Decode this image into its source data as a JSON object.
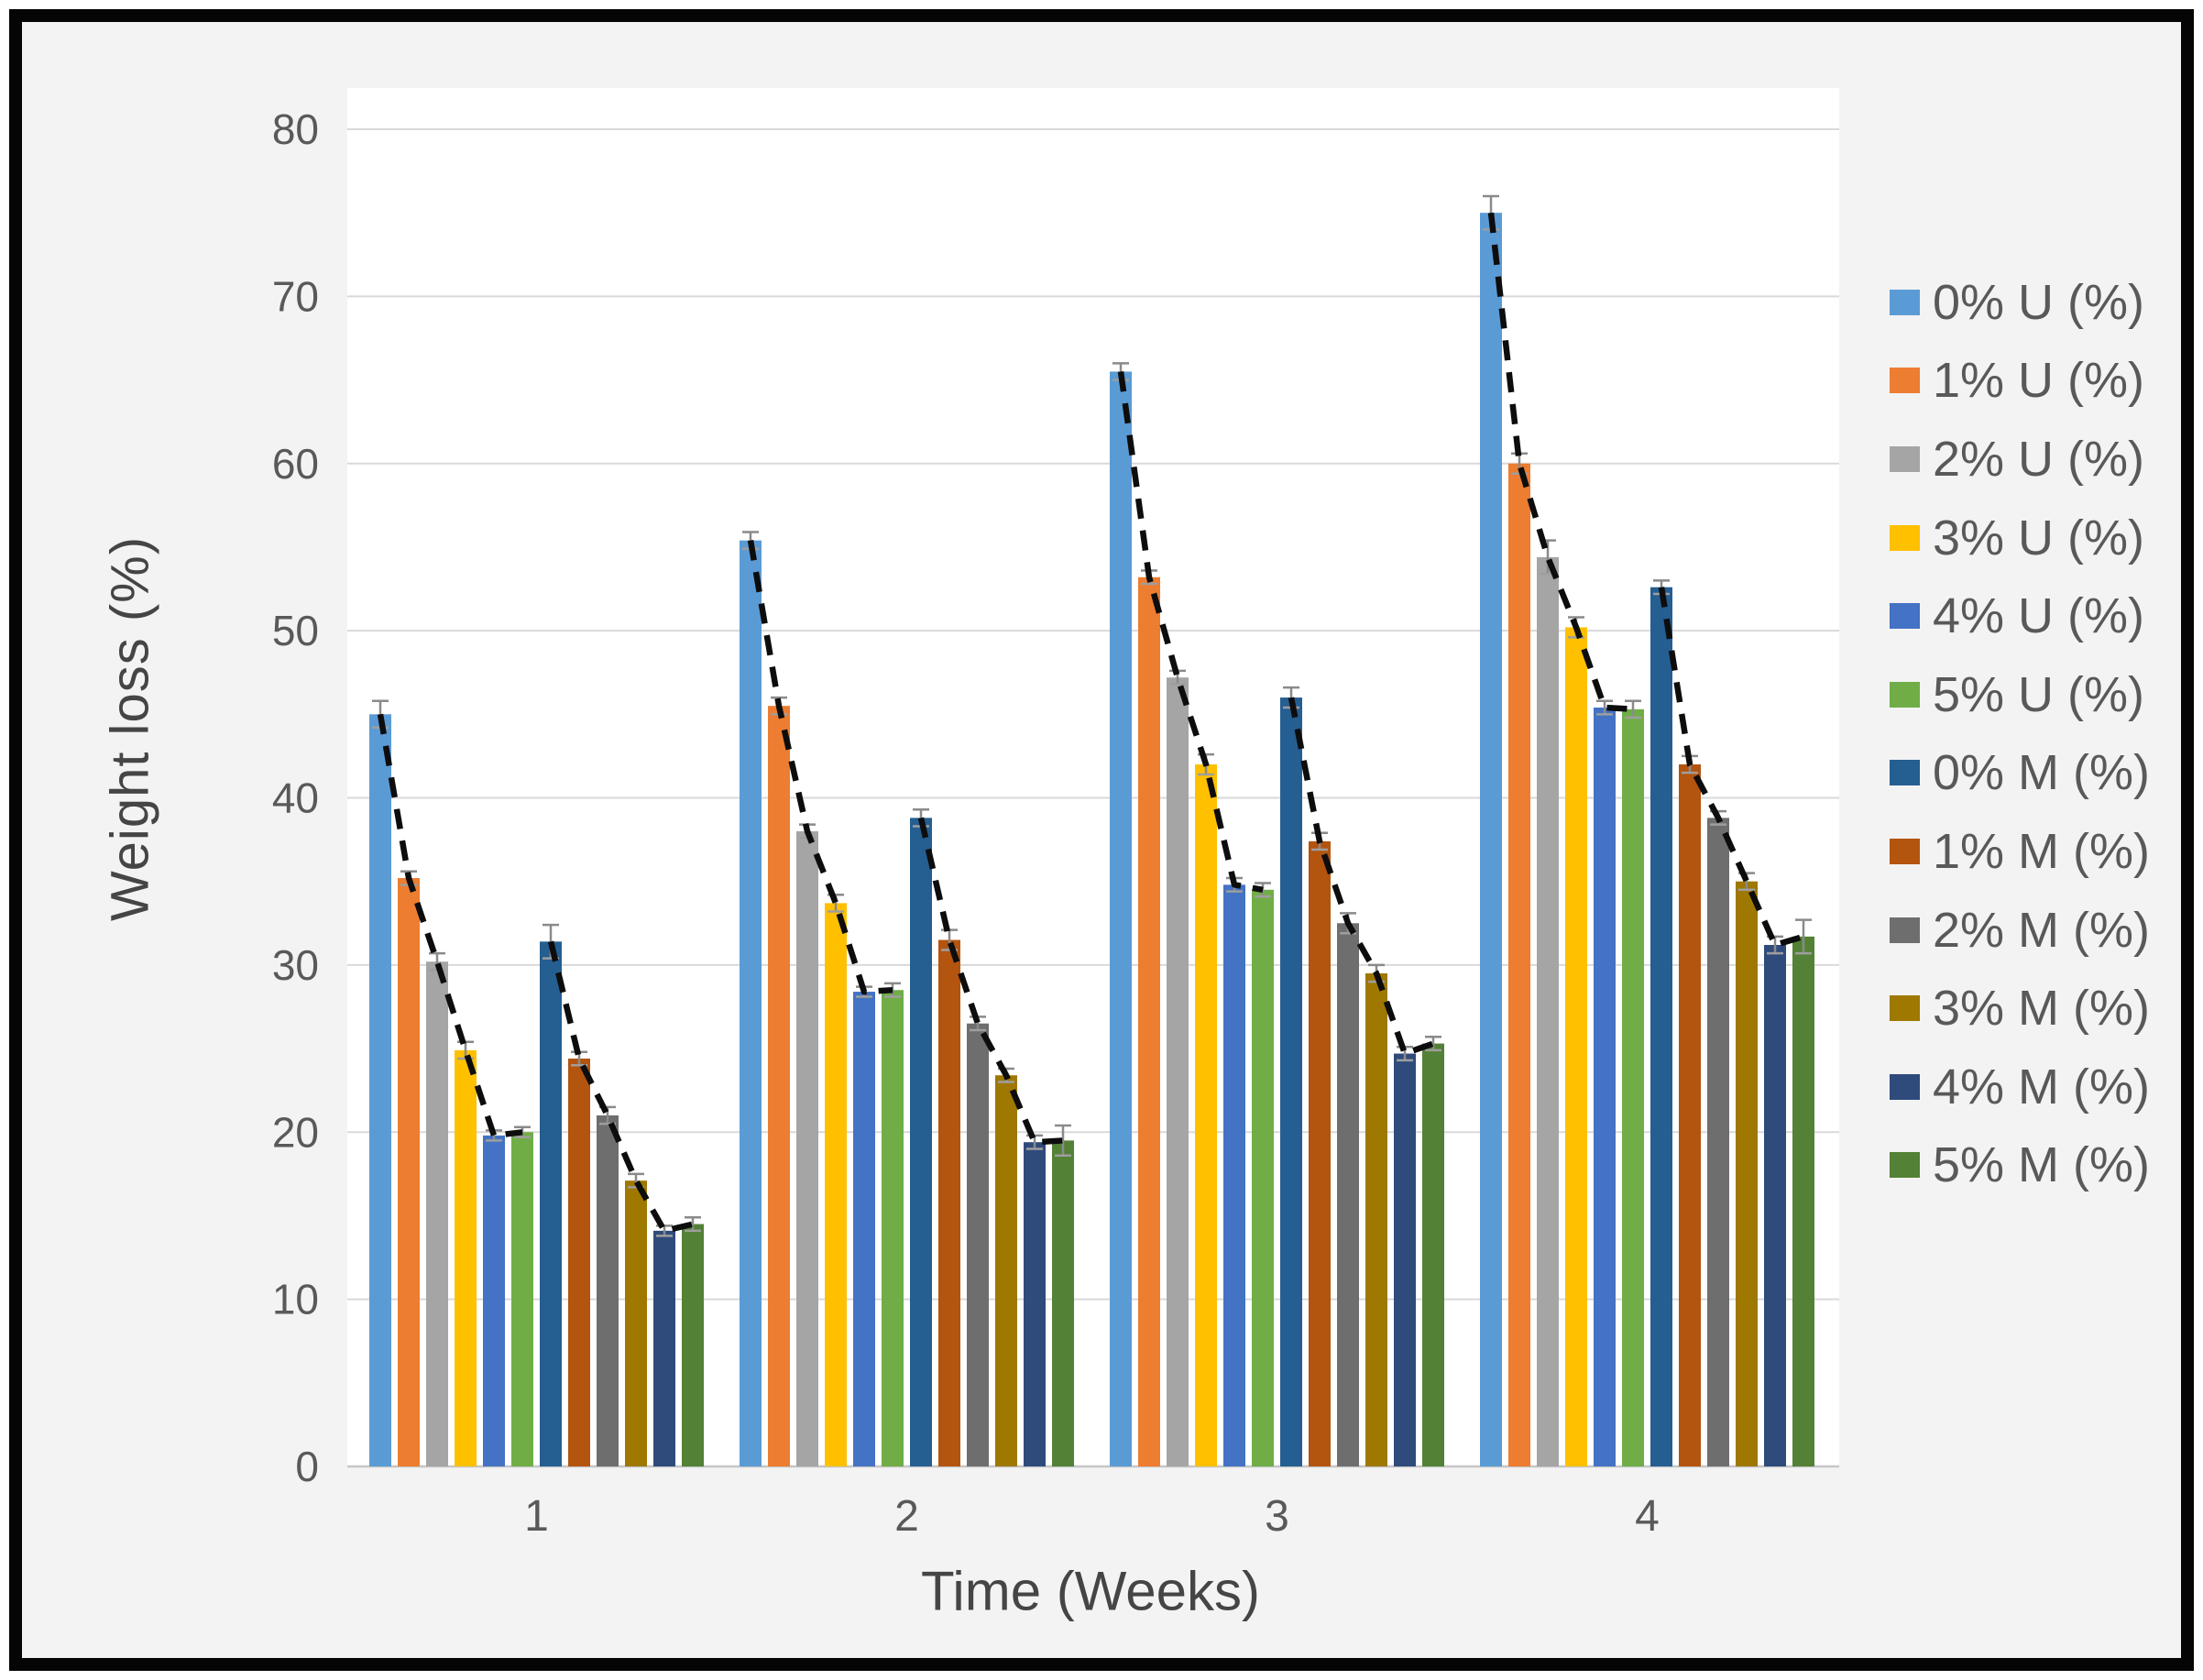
{
  "figure": {
    "background": "#F3F3F3",
    "border_color": "#050505"
  },
  "chart_data": {
    "type": "bar",
    "title": "",
    "xlabel": "Time (Weeks)",
    "ylabel": "Weight loss (%)",
    "categories": [
      "1",
      "2",
      "3",
      "4"
    ],
    "ylim": [
      0,
      80
    ],
    "yticks": [
      0,
      10,
      20,
      30,
      40,
      50,
      60,
      70,
      80
    ],
    "grid": true,
    "legend_position": "right",
    "error_bars": true,
    "trend_lines": {
      "style": "dashed",
      "color": "#0D0D0D",
      "note": "two dashed lines per week group: one tracing U-series bar tops, one tracing M-series bar tops"
    },
    "series": [
      {
        "name": "0% U (%)",
        "color": "#5B9BD5",
        "values": [
          45.0,
          55.4,
          65.5,
          75.0
        ],
        "errors": [
          0.8,
          0.5,
          0.5,
          1.0
        ]
      },
      {
        "name": "1% U (%)",
        "color": "#ED7D31",
        "values": [
          35.2,
          45.5,
          53.2,
          60.0
        ],
        "errors": [
          0.4,
          0.5,
          0.4,
          0.6
        ]
      },
      {
        "name": "2% U (%)",
        "color": "#A5A5A5",
        "values": [
          30.2,
          38.0,
          47.2,
          54.4
        ],
        "errors": [
          0.5,
          0.4,
          0.4,
          1.0
        ]
      },
      {
        "name": "3% U (%)",
        "color": "#FFC000",
        "values": [
          24.9,
          33.7,
          42.0,
          50.2
        ],
        "errors": [
          0.5,
          0.5,
          0.6,
          0.6
        ]
      },
      {
        "name": "4% U (%)",
        "color": "#4472C4",
        "values": [
          19.8,
          28.4,
          34.8,
          45.4
        ],
        "errors": [
          0.3,
          0.3,
          0.4,
          0.4
        ]
      },
      {
        "name": "5% U (%)",
        "color": "#70AD47",
        "values": [
          20.0,
          28.5,
          34.5,
          45.3
        ],
        "errors": [
          0.3,
          0.4,
          0.4,
          0.5
        ]
      },
      {
        "name": "0% M (%)",
        "color": "#255E91",
        "values": [
          31.4,
          38.8,
          46.0,
          52.6
        ],
        "errors": [
          1.0,
          0.5,
          0.6,
          0.4
        ]
      },
      {
        "name": "1% M (%)",
        "color": "#B3540F",
        "values": [
          24.4,
          31.5,
          37.4,
          42.0
        ],
        "errors": [
          0.4,
          0.6,
          0.5,
          0.5
        ]
      },
      {
        "name": "2% M (%)",
        "color": "#6E6E6E",
        "values": [
          21.0,
          26.5,
          32.5,
          38.8
        ],
        "errors": [
          0.5,
          0.4,
          0.6,
          0.4
        ]
      },
      {
        "name": "3% M (%)",
        "color": "#9E7800",
        "values": [
          17.1,
          23.4,
          29.5,
          35.0
        ],
        "errors": [
          0.4,
          0.4,
          0.5,
          0.5
        ]
      },
      {
        "name": "4% M (%)",
        "color": "#2F4B7C",
        "values": [
          14.1,
          19.4,
          24.7,
          31.2
        ],
        "errors": [
          0.3,
          0.4,
          0.4,
          0.5
        ]
      },
      {
        "name": "5% M (%)",
        "color": "#538135",
        "values": [
          14.5,
          19.5,
          25.3,
          31.7
        ],
        "errors": [
          0.4,
          0.9,
          0.4,
          1.0
        ]
      }
    ]
  }
}
